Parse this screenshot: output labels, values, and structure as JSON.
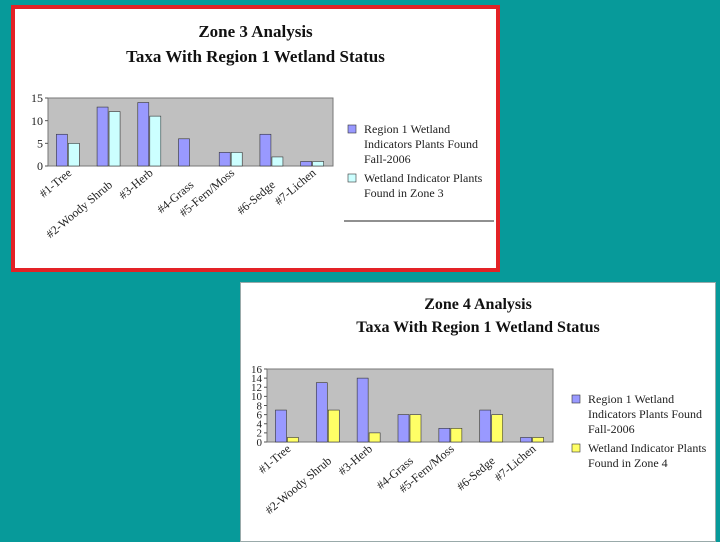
{
  "chart_data": [
    {
      "type": "bar",
      "title": "Zone 3 Analysis",
      "subtitle": "Taxa With Region 1 Wetland Status",
      "categories": [
        "#1-Tree",
        "#2-Woody Shrub",
        "#3-Herb",
        "#4-Grass",
        "#5-Fern/Moss",
        "#6-Sedge",
        "#7-Lichen"
      ],
      "series": [
        {
          "name": "Region 1 Wetland Indicators Plants Found Fall-2006",
          "values": [
            7,
            13,
            14,
            6,
            3,
            7,
            1
          ],
          "color": "#9999ff"
        },
        {
          "name": "Wetland Indicator Plants Found in Zone 3",
          "values": [
            5,
            12,
            11,
            0,
            3,
            2,
            1
          ],
          "color": "#ccffff"
        }
      ],
      "ylim": [
        0,
        15
      ],
      "yticks": [
        "0",
        "5",
        "10",
        "15"
      ],
      "legend": "right",
      "plot_background": "#c0c0c0"
    },
    {
      "type": "bar",
      "title": "Zone 4 Analysis",
      "subtitle": "Taxa With Region 1 Wetland Status",
      "categories": [
        "#1-Tree",
        "#2-Woody Shrub",
        "#3-Herb",
        "#4-Grass",
        "#5-Fern/Moss",
        "#6-Sedge",
        "#7-Lichen"
      ],
      "series": [
        {
          "name": "Region 1 Wetland Indicators Plants Found Fall-2006",
          "values": [
            7,
            13,
            14,
            6,
            3,
            7,
            1
          ],
          "color": "#9999ff"
        },
        {
          "name": "Wetland Indicator Plants Found in Zone 4",
          "values": [
            1,
            7,
            2,
            6,
            3,
            6,
            1
          ],
          "color": "#ffff66"
        }
      ],
      "ylim": [
        0,
        16
      ],
      "yticks": [
        "0",
        "2",
        "4",
        "6",
        "8",
        "10",
        "12",
        "14",
        "16"
      ],
      "legend": "right",
      "plot_background": "#c0c0c0"
    }
  ],
  "colors": {
    "background": "#079a9a",
    "panel_border_zone3": "#e32226"
  }
}
